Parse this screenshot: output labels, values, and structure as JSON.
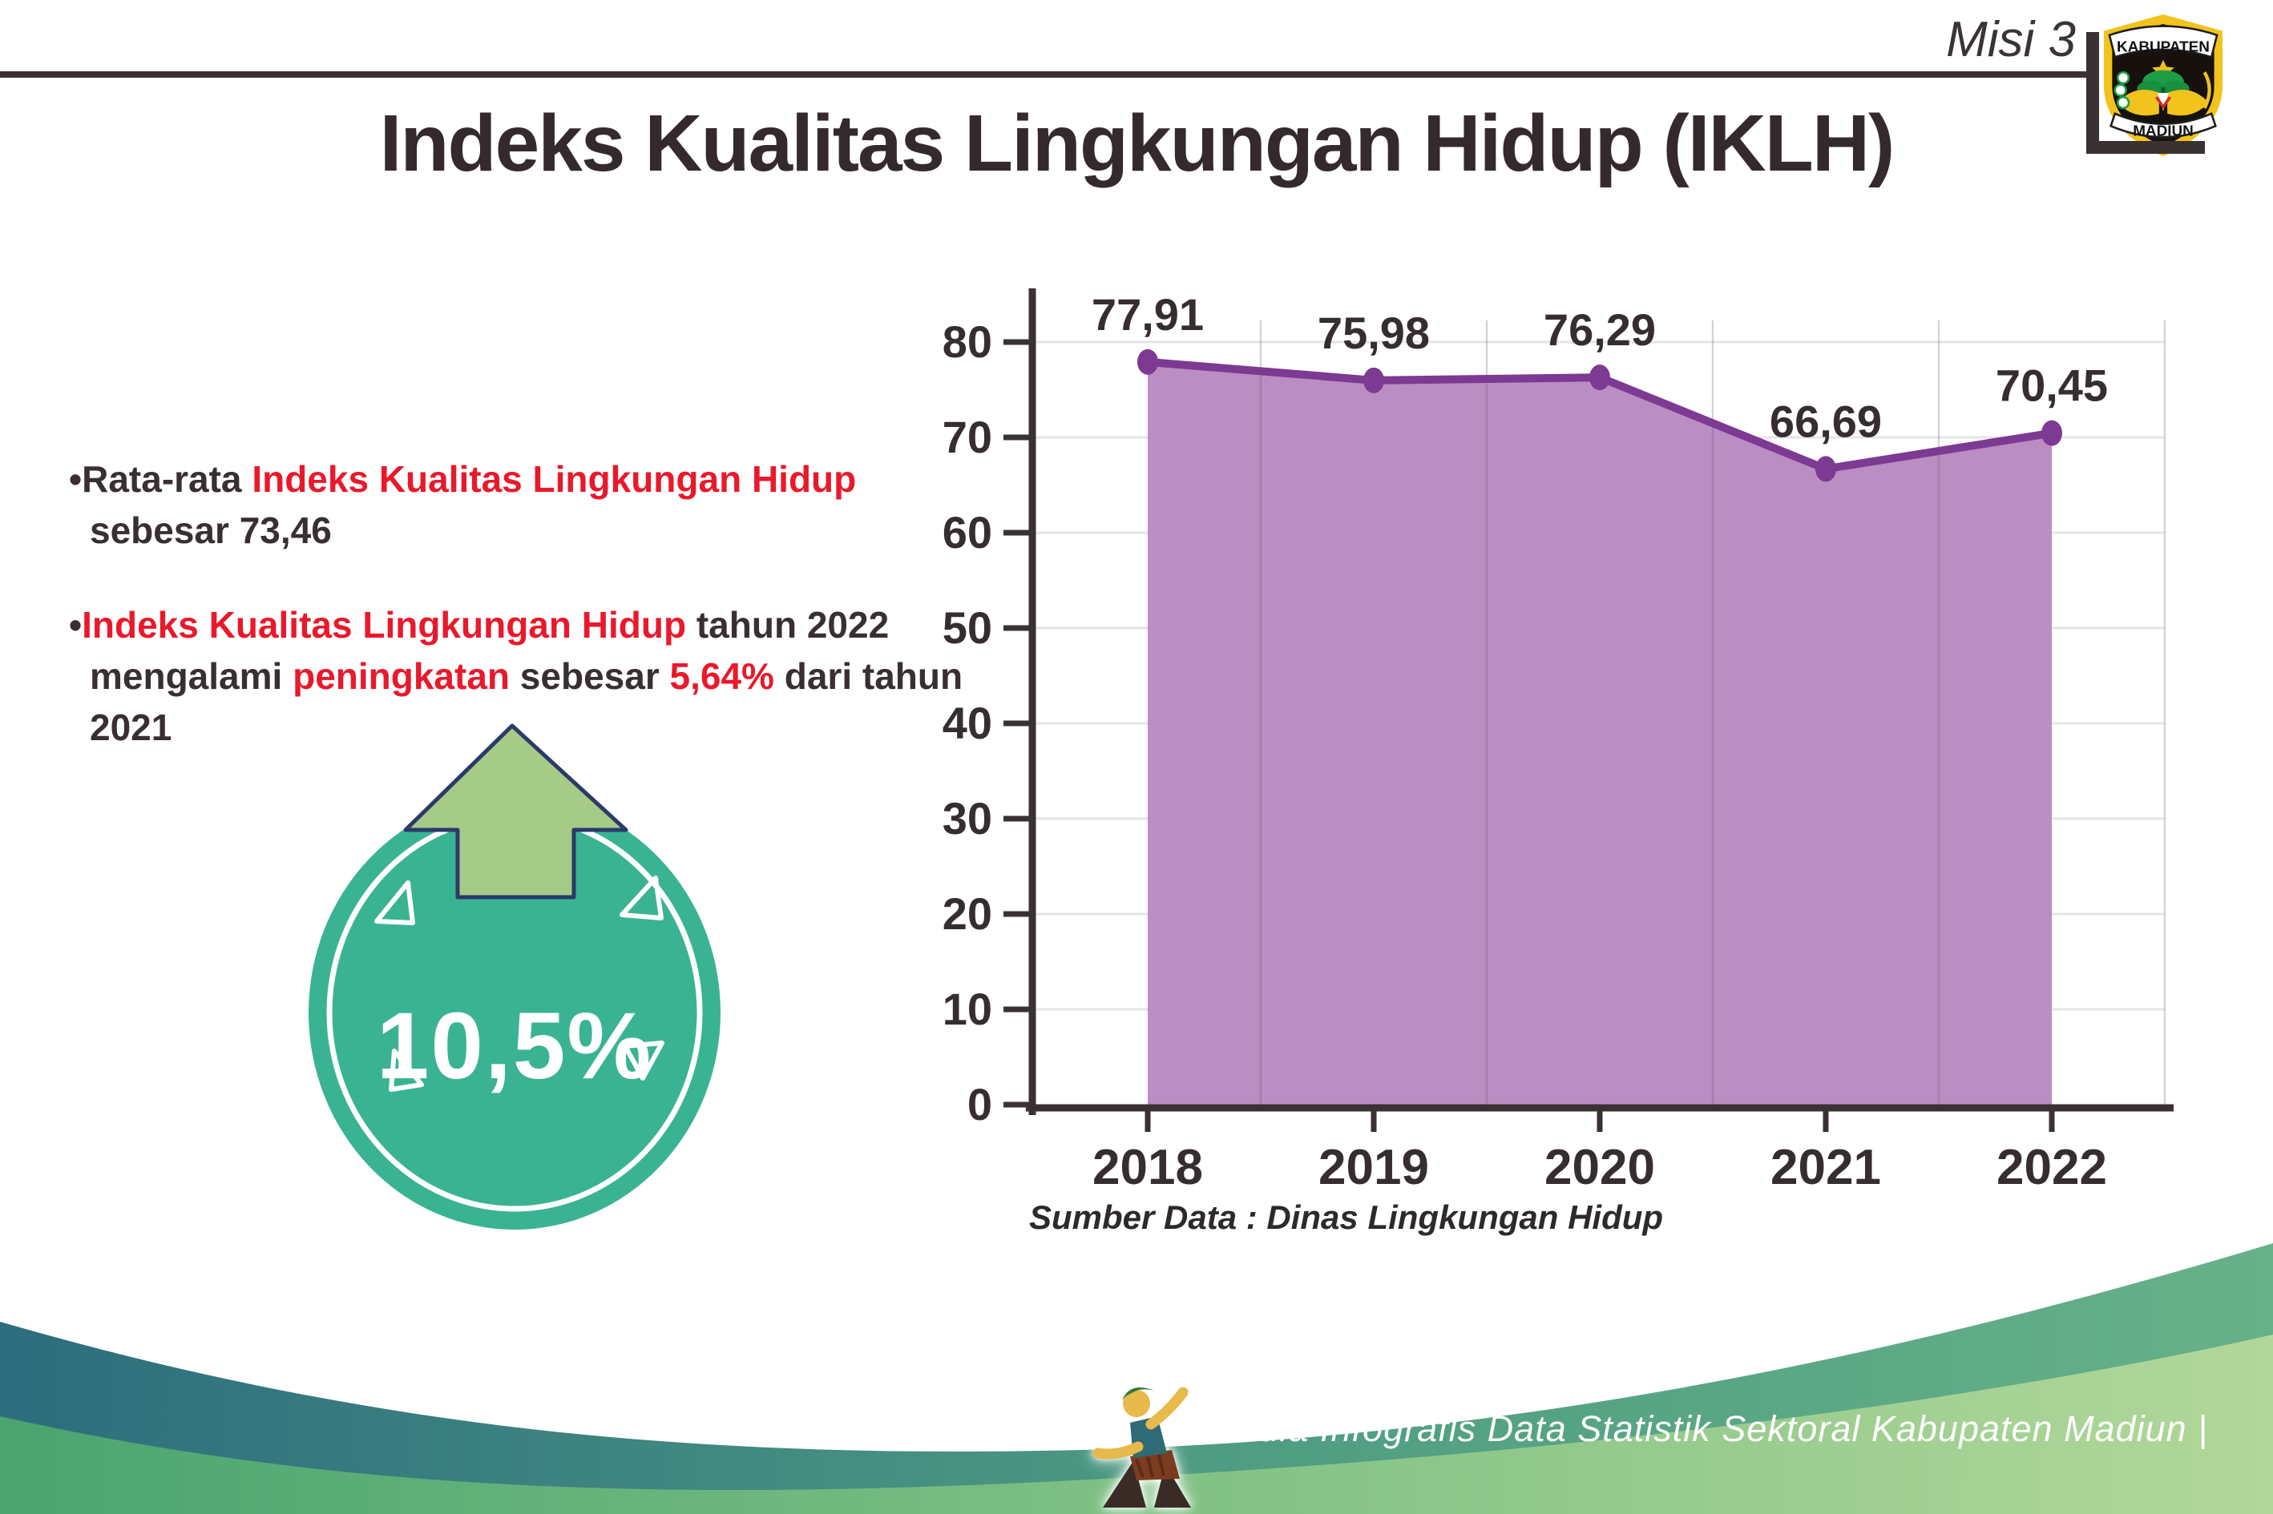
{
  "header": {
    "mission": "Misi 3",
    "logo": {
      "top": "KABUPATEN",
      "bottom": "MADIUN"
    }
  },
  "title": "Indeks Kualitas Lingkungan Hidup (IKLH)",
  "bullets": [
    {
      "marker": "•",
      "segments": [
        {
          "text": "Rata-rata ",
          "style": "dark"
        },
        {
          "text": "Indeks Kualitas Lingkungan Hidup",
          "style": "red"
        },
        {
          "text": " sebesar 73,46",
          "style": "dark"
        }
      ]
    },
    {
      "marker": "•",
      "segments": [
        {
          "text": "Indeks Kualitas Lingkungan Hidup",
          "style": "red"
        },
        {
          "text": " tahun 2022 mengalami ",
          "style": "dark"
        },
        {
          "text": "peningkatan",
          "style": "red"
        },
        {
          "text": " sebesar ",
          "style": "dark"
        },
        {
          "text": "5,64%",
          "style": "red"
        },
        {
          "text": " dari tahun 2021",
          "style": "dark"
        }
      ]
    }
  ],
  "badge": {
    "value": "10,5%",
    "icon": "arrow-up",
    "circle_color": "#3ab393",
    "arrow_color": "#a6cb87",
    "arrow_outline": "#2b3a69"
  },
  "chart_data": {
    "type": "area",
    "categories": [
      "2018",
      "2019",
      "2020",
      "2021",
      "2022"
    ],
    "values": [
      77.91,
      75.98,
      76.29,
      66.69,
      70.45
    ],
    "point_labels": [
      "77,91",
      "75,98",
      "76,29",
      "66,69",
      "70,45"
    ],
    "ylim": [
      0,
      80
    ],
    "yticks": [
      0,
      10,
      20,
      30,
      40,
      50,
      60,
      70,
      80
    ],
    "grid": true,
    "legend": false,
    "source": "Sumber Data : Dinas Lingkungan Hidup",
    "colors": {
      "area": "#ba8dc3",
      "line": "#7d3a92",
      "marker": "#7d3a92",
      "axis": "#3a3133",
      "grid": "#e6e4e4",
      "label": "#362d2f"
    }
  },
  "footer": {
    "credit": "Media Infografis Data Statistik Sektoral Kabupaten Madiun |"
  },
  "colors": {
    "dark_text": "#392f31",
    "red_text": "#e9192b",
    "wave_teal_start": "#2d6d7e",
    "wave_teal_end": "#66b189",
    "wave_green_start": "#4aa470",
    "wave_green_end": "#b2d79a"
  }
}
